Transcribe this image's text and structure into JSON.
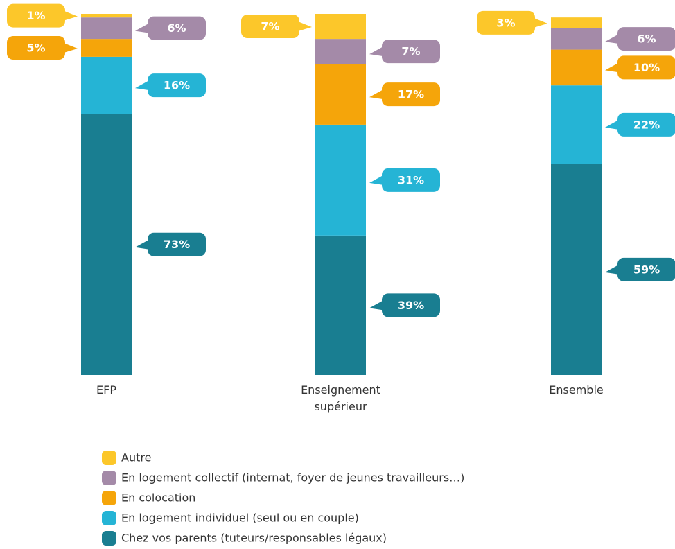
{
  "chart_data": {
    "type": "stacked-bar",
    "categories": [
      "EFP",
      "Enseignement supérieur",
      "Ensemble"
    ],
    "series": [
      {
        "name": "Chez vos parents (tuteurs/responsables légaux)",
        "color": "#197e91",
        "values": [
          73,
          39,
          59
        ],
        "value_labels": [
          "73%",
          "39%",
          "59%"
        ]
      },
      {
        "name": "En logement individuel (seul ou en couple)",
        "color": "#25b4d5",
        "values": [
          16,
          31,
          22
        ],
        "value_labels": [
          "16%",
          "31%",
          "22%"
        ]
      },
      {
        "name": "En colocation",
        "color": "#f5a50a",
        "values": [
          5,
          17,
          10
        ],
        "value_labels": [
          "5%",
          "17%",
          "10%"
        ]
      },
      {
        "name": "En logement collectif (internat, foyer de jeunes travailleurs…)",
        "color": "#a48aa8",
        "values": [
          6,
          7,
          6
        ],
        "value_labels": [
          "6%",
          "7%",
          "6%"
        ]
      },
      {
        "name": "Autre",
        "color": "#fcc72a",
        "values": [
          1,
          7,
          3
        ],
        "value_labels": [
          "1%",
          "7%",
          "3%"
        ]
      }
    ]
  }
}
